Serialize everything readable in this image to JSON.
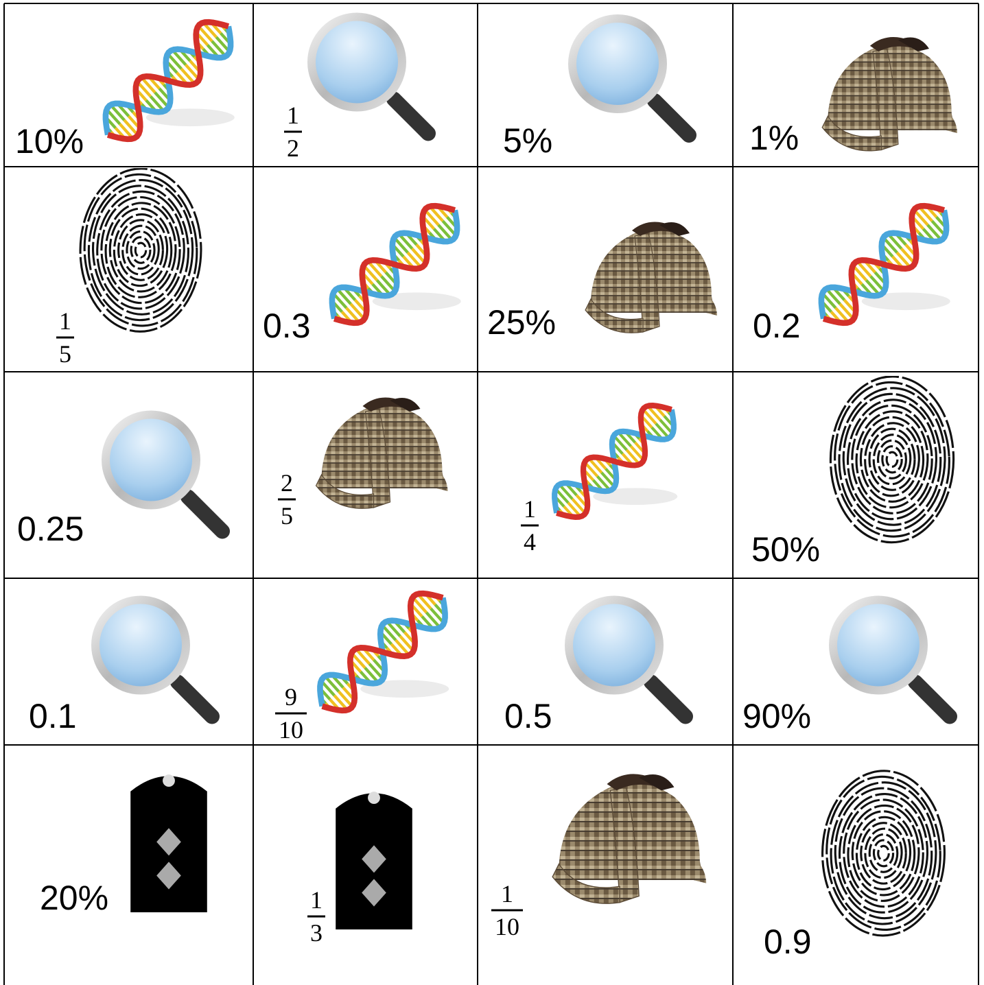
{
  "grid": {
    "rows": [
      [
        {
          "text": "10%"
        },
        {
          "numerator": "1",
          "denominator": "2"
        },
        {
          "text": "5%"
        },
        {
          "text": "1%"
        }
      ],
      [
        {
          "numerator": "1",
          "denominator": "5"
        },
        {
          "text": "0.3"
        },
        {
          "text": "25%"
        },
        {
          "text": "0.2"
        }
      ],
      [
        {
          "text": "0.25"
        },
        {
          "numerator": "2",
          "denominator": "5"
        },
        {
          "numerator": "1",
          "denominator": "4"
        },
        {
          "text": "50%"
        }
      ],
      [
        {
          "text": "0.1"
        },
        {
          "numerator": "9",
          "denominator": "10"
        },
        {
          "text": "0.5"
        },
        {
          "text": "90%"
        }
      ],
      [
        {
          "text": "20%"
        },
        {
          "numerator": "1",
          "denominator": "3"
        },
        {
          "numerator": "1",
          "denominator": "10"
        },
        {
          "text": "0.9"
        }
      ]
    ]
  }
}
